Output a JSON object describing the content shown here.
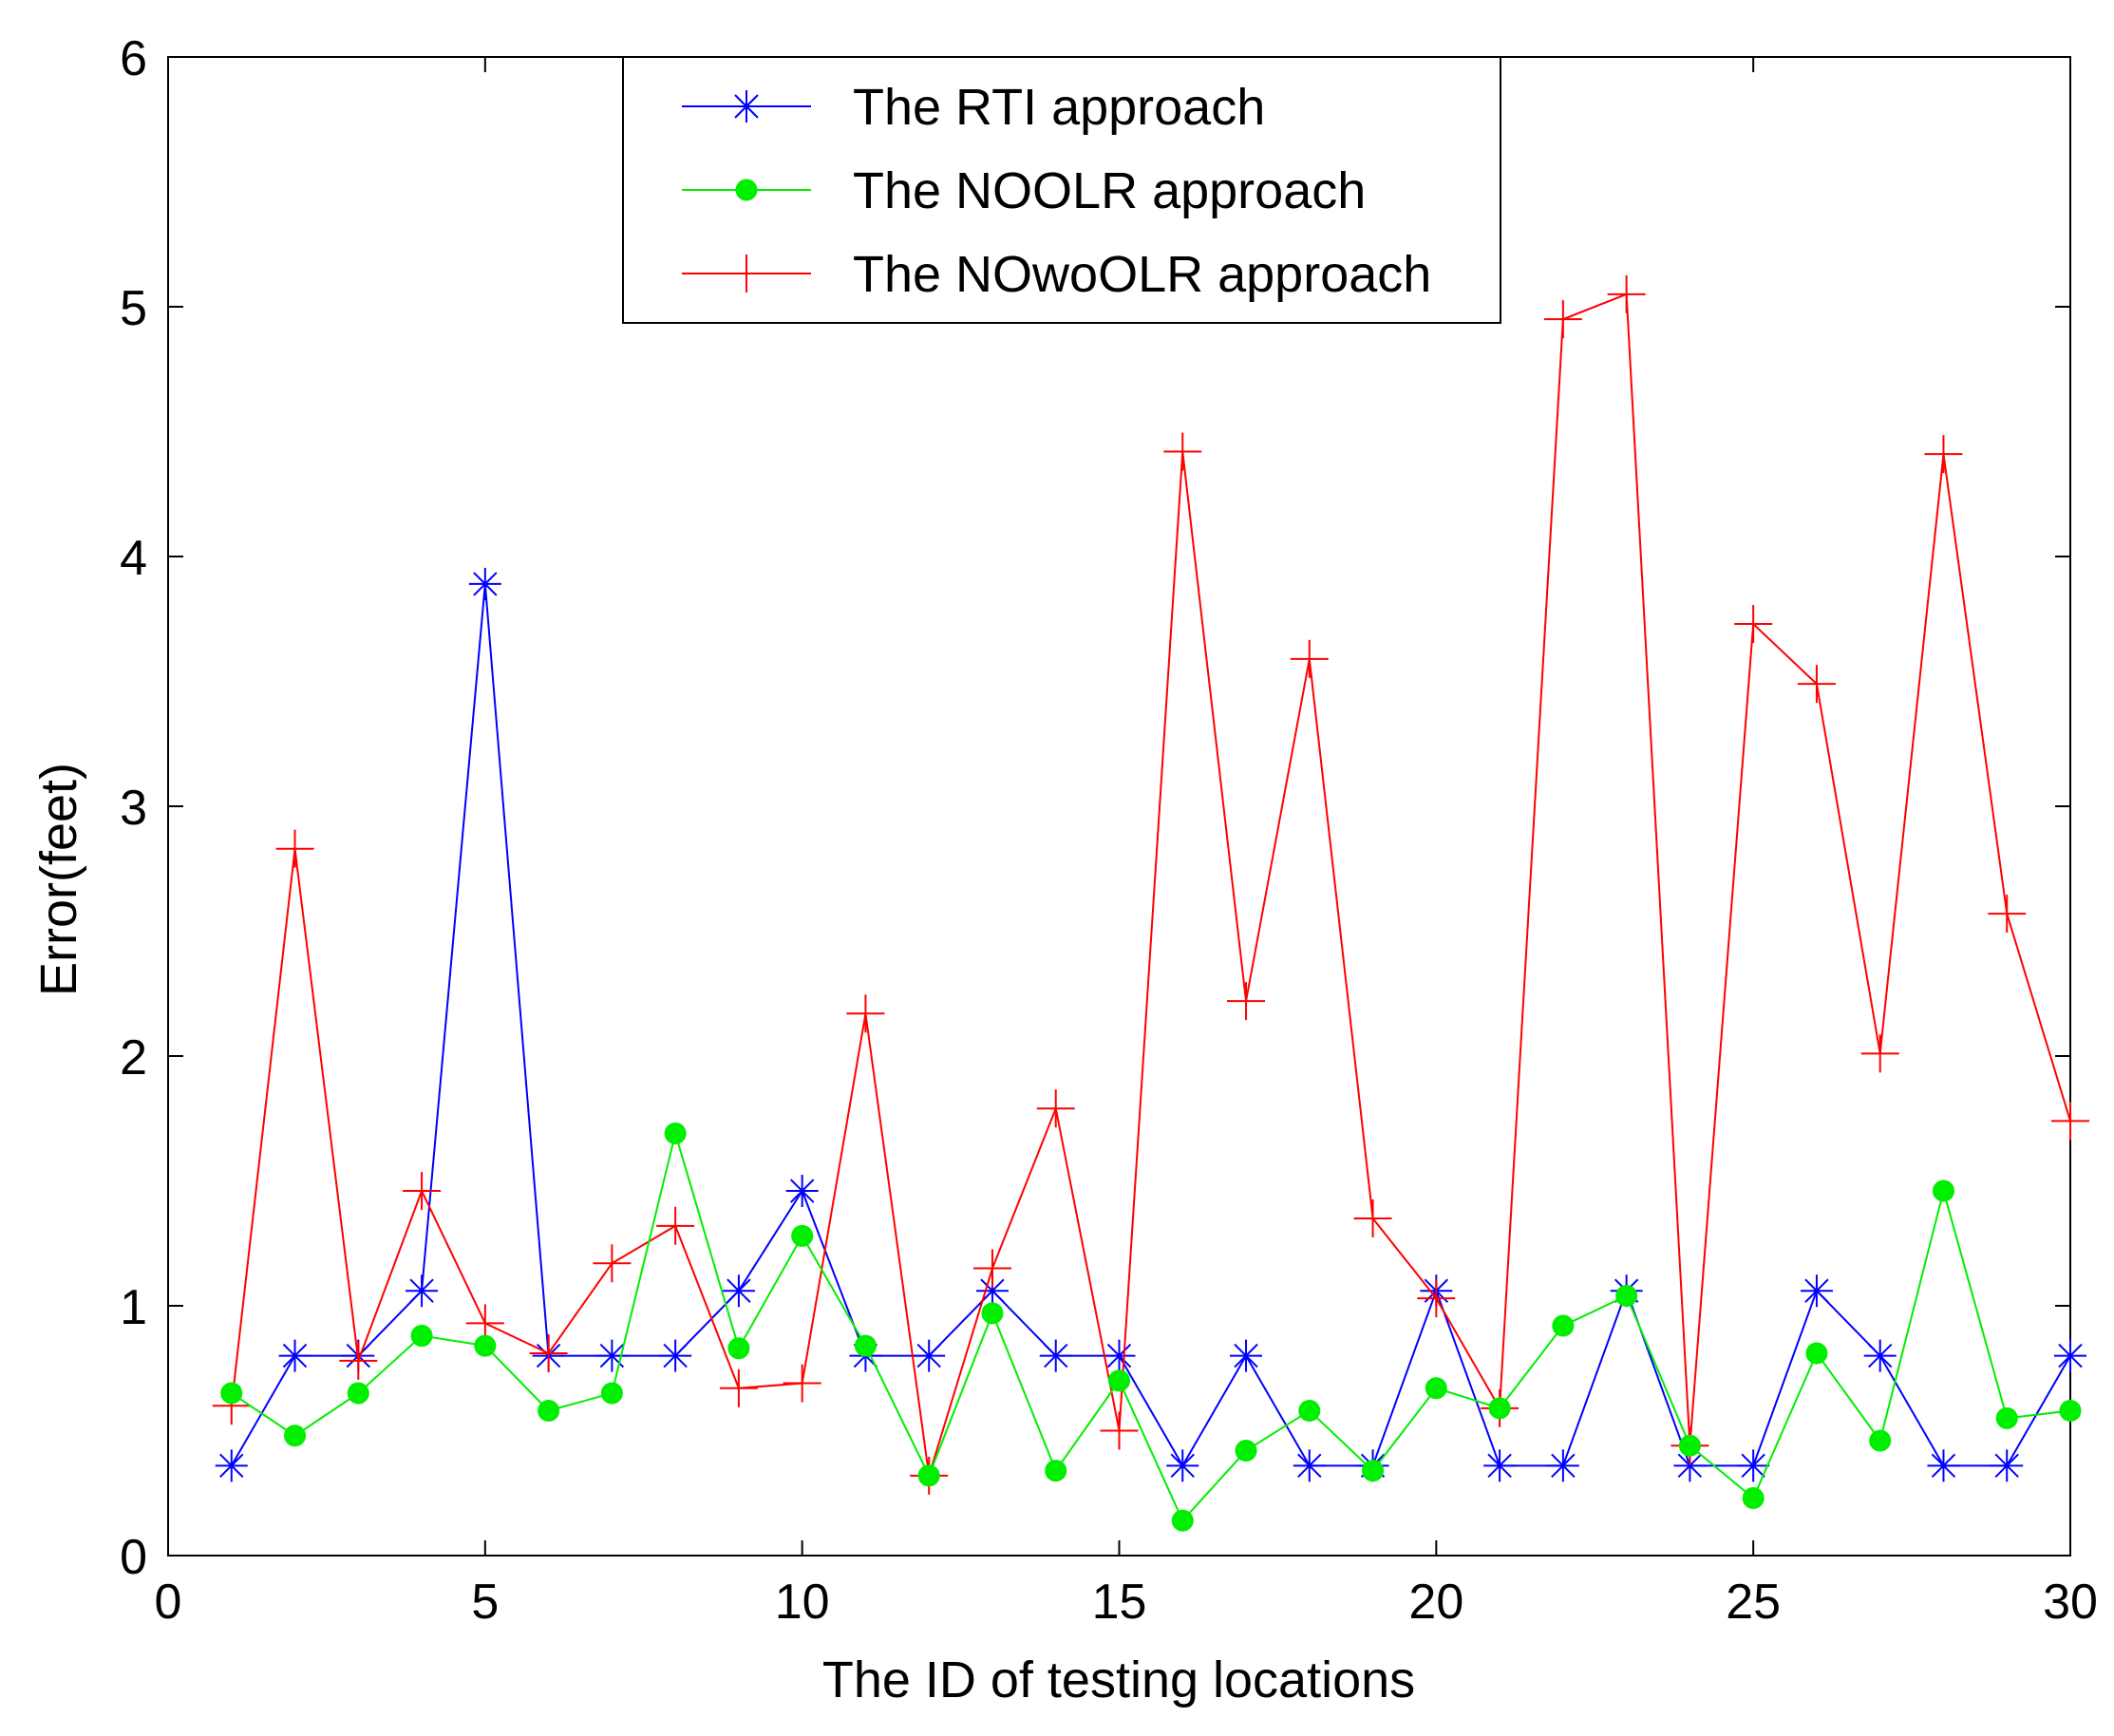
{
  "chart_data": {
    "type": "line",
    "title": "",
    "xlabel": "The ID of testing locations",
    "ylabel": "Error(feet)",
    "xlim": [
      0,
      30
    ],
    "ylim": [
      0,
      6
    ],
    "xticks": [
      0,
      5,
      10,
      15,
      20,
      25,
      30
    ],
    "yticks": [
      0,
      1,
      2,
      3,
      4,
      5,
      6
    ],
    "grid": false,
    "legend_position": "top-center",
    "x": [
      1,
      2,
      3,
      4,
      5,
      6,
      7,
      8,
      9,
      10,
      11,
      12,
      13,
      14,
      15,
      16,
      17,
      18,
      19,
      20,
      21,
      22,
      23,
      24,
      25,
      26,
      27,
      28,
      29,
      30
    ],
    "series": [
      {
        "name": "The RTI approach",
        "color": "#0000ff",
        "marker": "asterisk",
        "values": [
          0.36,
          0.8,
          0.8,
          1.06,
          3.89,
          0.8,
          0.8,
          0.8,
          1.06,
          1.46,
          0.8,
          0.8,
          1.06,
          0.8,
          0.8,
          0.36,
          0.8,
          0.36,
          0.36,
          1.06,
          0.36,
          0.36,
          1.06,
          0.36,
          0.36,
          1.06,
          0.8,
          0.36,
          0.36,
          0.8
        ]
      },
      {
        "name": "The NOOLR approach",
        "color": "#00ee00",
        "marker": "dot",
        "values": [
          0.65,
          0.48,
          0.65,
          0.88,
          0.84,
          0.58,
          0.65,
          1.69,
          0.83,
          1.28,
          0.84,
          0.32,
          0.97,
          0.34,
          0.7,
          0.14,
          0.42,
          0.58,
          0.34,
          0.67,
          0.59,
          0.92,
          1.04,
          0.44,
          0.23,
          0.81,
          0.46,
          1.46,
          0.55,
          0.58
        ]
      },
      {
        "name": "The NOwoOLR approach",
        "color": "#ff0000",
        "marker": "plus",
        "values": [
          0.6,
          2.83,
          0.78,
          1.46,
          0.93,
          0.81,
          1.17,
          1.32,
          0.67,
          0.69,
          2.17,
          0.32,
          1.15,
          1.79,
          0.5,
          4.42,
          2.22,
          3.59,
          1.35,
          1.03,
          0.59,
          4.95,
          5.05,
          0.44,
          3.73,
          3.49,
          2.01,
          4.41,
          2.57,
          1.74
        ]
      }
    ]
  }
}
